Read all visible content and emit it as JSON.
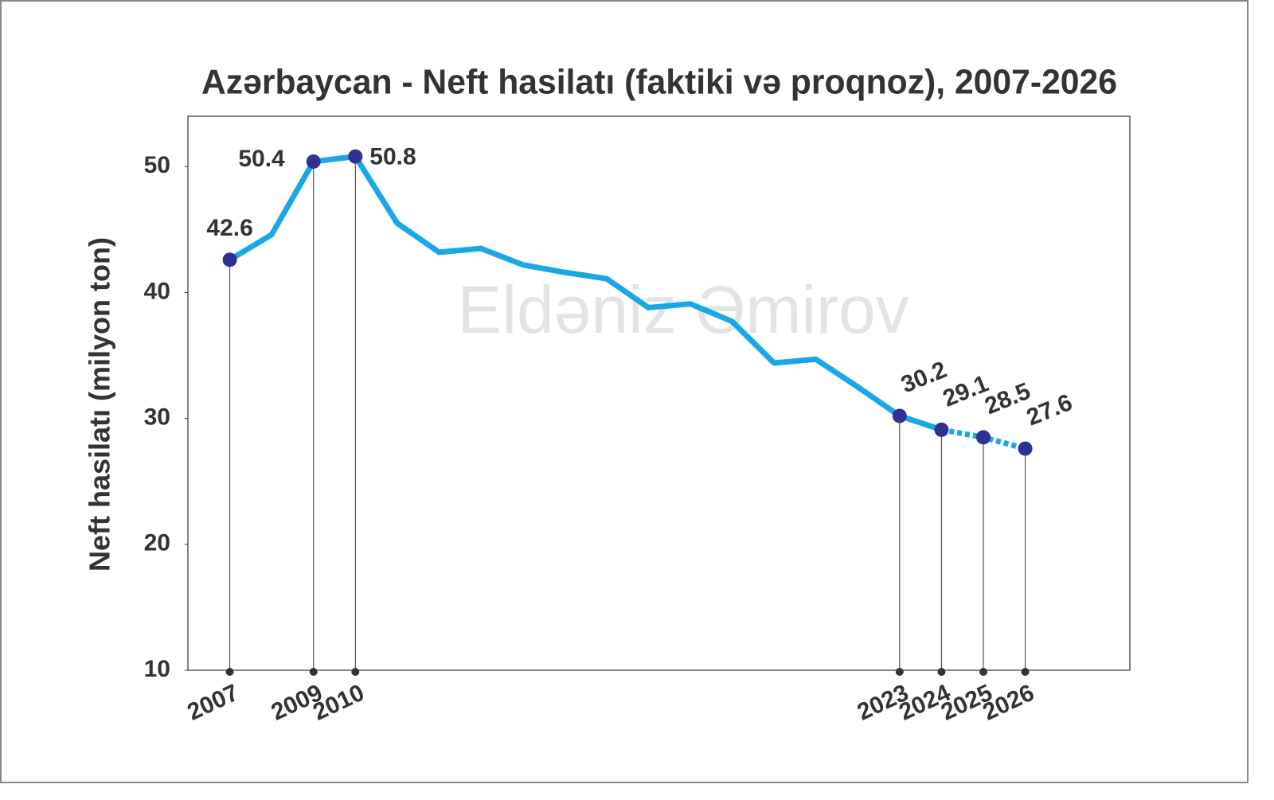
{
  "chart_data": {
    "type": "line",
    "title": "Azərbaycan - Neft hasilatı (faktiki və proqnoz), 2007-2026",
    "y_label": "Neft hasilatı (milyon ton)",
    "watermark": "Eldəniz Əmirov",
    "x": [
      2007,
      2008,
      2009,
      2010,
      2011,
      2012,
      2013,
      2014,
      2015,
      2016,
      2017,
      2018,
      2019,
      2020,
      2021,
      2022,
      2023,
      2024,
      2025,
      2026
    ],
    "series": [
      {
        "name": "faktiki",
        "color": "#1aa7e6",
        "dash": false,
        "values": [
          42.6,
          44.6,
          50.4,
          50.8,
          45.5,
          43.2,
          43.5,
          42.2,
          41.6,
          41.1,
          38.8,
          39.1,
          37.7,
          34.4,
          34.7,
          32.5,
          30.2,
          29.1,
          null,
          null
        ]
      },
      {
        "name": "proqnoz",
        "color": "#1aa7e6",
        "dash": true,
        "values": [
          null,
          null,
          null,
          null,
          null,
          null,
          null,
          null,
          null,
          null,
          null,
          null,
          null,
          null,
          null,
          null,
          null,
          29.1,
          28.5,
          27.6
        ]
      }
    ],
    "marker_color": "#2e3192",
    "xlim": [
      2006,
      2028.5
    ],
    "xticks": [
      2007,
      2009,
      2010,
      2023,
      2024,
      2025,
      2026
    ],
    "ylim": [
      10,
      54
    ],
    "yticks": [
      10,
      20,
      30,
      40,
      50
    ]
  }
}
